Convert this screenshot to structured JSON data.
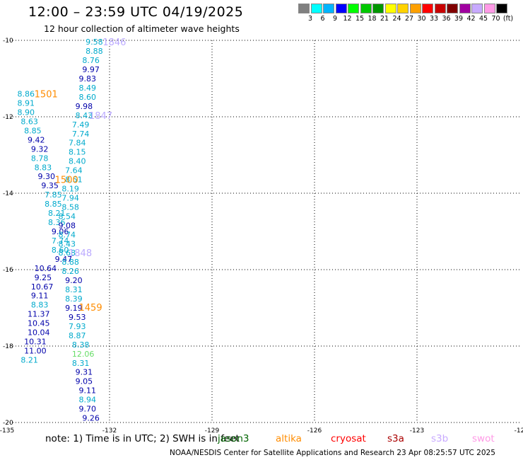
{
  "header": {
    "title": "12:00 – 23:59 UTC 04/19/2025",
    "subtitle": "12 hour collection of altimeter wave heights"
  },
  "legend": {
    "colors": [
      "#808080",
      "#00ffff",
      "#00b4ff",
      "#0000ff",
      "#00ff00",
      "#00c800",
      "#009600",
      "#ffff00",
      "#ffd200",
      "#ffa000",
      "#ff0000",
      "#c80000",
      "#800000",
      "#a000a0",
      "#c8aaff",
      "#ff9ae6",
      "#000000"
    ],
    "labels": [
      "3",
      "6",
      "9",
      "12",
      "15",
      "18",
      "21",
      "24",
      "27",
      "30",
      "33",
      "36",
      "39",
      "42",
      "45",
      "70",
      "(ft)"
    ]
  },
  "map": {
    "x_ticks": [
      "-135",
      "-132",
      "-129",
      "-126",
      "-123",
      "-12"
    ],
    "y_ticks": [
      "-10",
      "-12",
      "-14",
      "-16",
      "-18",
      "-20"
    ]
  },
  "observations": [
    {
      "lon": -134.7,
      "lat": -11.4,
      "v": "8.86",
      "c": "#00aacc"
    },
    {
      "lon": -134.7,
      "lat": -11.64,
      "v": "8.91",
      "c": "#00aacc"
    },
    {
      "lon": -134.7,
      "lat": -11.88,
      "v": "8.90",
      "c": "#00aacc"
    },
    {
      "lon": -134.6,
      "lat": -12.12,
      "v": "8.63",
      "c": "#00aacc"
    },
    {
      "lon": -134.5,
      "lat": -12.36,
      "v": "8.85",
      "c": "#00aacc"
    },
    {
      "lon": -134.4,
      "lat": -12.6,
      "v": "9.42",
      "c": "#0000aa"
    },
    {
      "lon": -134.3,
      "lat": -12.84,
      "v": "9.32",
      "c": "#0000aa"
    },
    {
      "lon": -134.3,
      "lat": -13.08,
      "v": "8.78",
      "c": "#00aacc"
    },
    {
      "lon": -134.2,
      "lat": -13.32,
      "v": "8.83",
      "c": "#00aacc"
    },
    {
      "lon": -134.1,
      "lat": -13.56,
      "v": "9.30",
      "c": "#0000aa"
    },
    {
      "lon": -134.0,
      "lat": -13.8,
      "v": "9.35",
      "c": "#0000aa"
    },
    {
      "lon": -133.9,
      "lat": -14.04,
      "v": "7.85",
      "c": "#00aacc"
    },
    {
      "lon": -133.9,
      "lat": -14.28,
      "v": "8.85",
      "c": "#00aacc"
    },
    {
      "lon": -133.8,
      "lat": -14.52,
      "v": "8.21",
      "c": "#00aacc"
    },
    {
      "lon": -133.8,
      "lat": -14.76,
      "v": "8.36",
      "c": "#00aacc"
    },
    {
      "lon": -133.7,
      "lat": -15.0,
      "v": "9.06",
      "c": "#0000aa"
    },
    {
      "lon": -133.7,
      "lat": -15.24,
      "v": "7.74",
      "c": "#00aacc"
    },
    {
      "lon": -133.7,
      "lat": -15.48,
      "v": "8.60",
      "c": "#00aacc"
    },
    {
      "lon": -133.6,
      "lat": -15.72,
      "v": "9.47",
      "c": "#0000aa"
    },
    {
      "lon": -134.2,
      "lat": -15.96,
      "v": "10.64",
      "c": "#0000aa"
    },
    {
      "lon": -134.2,
      "lat": -16.2,
      "v": "9.25",
      "c": "#0000aa"
    },
    {
      "lon": -134.3,
      "lat": -16.44,
      "v": "10.67",
      "c": "#0000aa"
    },
    {
      "lon": -134.3,
      "lat": -16.68,
      "v": "9.11",
      "c": "#0000aa"
    },
    {
      "lon": -134.3,
      "lat": -16.92,
      "v": "8.83",
      "c": "#00aacc"
    },
    {
      "lon": -134.4,
      "lat": -17.16,
      "v": "11.37",
      "c": "#0000aa"
    },
    {
      "lon": -134.4,
      "lat": -17.4,
      "v": "10.45",
      "c": "#0000aa"
    },
    {
      "lon": -134.4,
      "lat": -17.64,
      "v": "10.04",
      "c": "#0000aa"
    },
    {
      "lon": -134.5,
      "lat": -17.88,
      "v": "10.31",
      "c": "#0000aa"
    },
    {
      "lon": -134.5,
      "lat": -18.12,
      "v": "11.00",
      "c": "#0000aa"
    },
    {
      "lon": -134.6,
      "lat": -18.36,
      "v": "8.21",
      "c": "#00aacc"
    },
    {
      "lon": -132.7,
      "lat": -10.04,
      "v": "9.58",
      "c": "#00aacc"
    },
    {
      "lon": -132.7,
      "lat": -10.28,
      "v": "8.88",
      "c": "#00aacc"
    },
    {
      "lon": -132.8,
      "lat": -10.52,
      "v": "8.76",
      "c": "#00aacc"
    },
    {
      "lon": -132.8,
      "lat": -10.76,
      "v": "9.97",
      "c": "#0000aa"
    },
    {
      "lon": -132.9,
      "lat": -11.0,
      "v": "9.83",
      "c": "#0000aa"
    },
    {
      "lon": -132.9,
      "lat": -11.24,
      "v": "8.49",
      "c": "#00aacc"
    },
    {
      "lon": -132.9,
      "lat": -11.48,
      "v": "8.60",
      "c": "#00aacc"
    },
    {
      "lon": -133.0,
      "lat": -11.72,
      "v": "9.98",
      "c": "#0000aa"
    },
    {
      "lon": -133.0,
      "lat": -11.96,
      "v": "8.43",
      "c": "#00aacc"
    },
    {
      "lon": -133.1,
      "lat": -12.2,
      "v": "7.49",
      "c": "#00aacc"
    },
    {
      "lon": -133.1,
      "lat": -12.44,
      "v": "7.74",
      "c": "#00aacc"
    },
    {
      "lon": -133.2,
      "lat": -12.68,
      "v": "7.84",
      "c": "#00aacc"
    },
    {
      "lon": -133.2,
      "lat": -12.92,
      "v": "8.15",
      "c": "#00aacc"
    },
    {
      "lon": -133.2,
      "lat": -13.16,
      "v": "8.40",
      "c": "#00aacc"
    },
    {
      "lon": -133.3,
      "lat": -13.4,
      "v": "7.64",
      "c": "#00aacc"
    },
    {
      "lon": -133.3,
      "lat": -13.64,
      "v": "8.51",
      "c": "#00aacc"
    },
    {
      "lon": -133.4,
      "lat": -13.88,
      "v": "8.19",
      "c": "#00aacc"
    },
    {
      "lon": -133.4,
      "lat": -14.12,
      "v": "7.94",
      "c": "#00aacc"
    },
    {
      "lon": -133.4,
      "lat": -14.36,
      "v": "8.58",
      "c": "#00aacc"
    },
    {
      "lon": -133.5,
      "lat": -14.6,
      "v": "8.54",
      "c": "#00aacc"
    },
    {
      "lon": -133.5,
      "lat": -14.84,
      "v": "9.08",
      "c": "#0000aa"
    },
    {
      "lon": -133.5,
      "lat": -15.08,
      "v": "8.74",
      "c": "#00aacc"
    },
    {
      "lon": -133.5,
      "lat": -15.32,
      "v": "8.43",
      "c": "#00aacc"
    },
    {
      "lon": -133.5,
      "lat": -15.56,
      "v": "8.68",
      "c": "#00aacc"
    },
    {
      "lon": -133.4,
      "lat": -15.8,
      "v": "8.88",
      "c": "#00aacc"
    },
    {
      "lon": -133.4,
      "lat": -16.04,
      "v": "8.26",
      "c": "#00aacc"
    },
    {
      "lon": -133.3,
      "lat": -16.28,
      "v": "9.20",
      "c": "#0000aa"
    },
    {
      "lon": -133.3,
      "lat": -16.52,
      "v": "8.31",
      "c": "#00aacc"
    },
    {
      "lon": -133.3,
      "lat": -16.76,
      "v": "8.39",
      "c": "#00aacc"
    },
    {
      "lon": -133.3,
      "lat": -17.0,
      "v": "9.19",
      "c": "#0000aa"
    },
    {
      "lon": -133.2,
      "lat": -17.24,
      "v": "9.53",
      "c": "#0000aa"
    },
    {
      "lon": -133.2,
      "lat": -17.48,
      "v": "7.93",
      "c": "#00aacc"
    },
    {
      "lon": -133.2,
      "lat": -17.72,
      "v": "8.87",
      "c": "#00aacc"
    },
    {
      "lon": -133.1,
      "lat": -17.96,
      "v": "8.38",
      "c": "#00aacc"
    },
    {
      "lon": -133.1,
      "lat": -18.2,
      "v": "12.06",
      "c": "#66dd66"
    },
    {
      "lon": -133.1,
      "lat": -18.44,
      "v": "8.31",
      "c": "#00aacc"
    },
    {
      "lon": -133.0,
      "lat": -18.68,
      "v": "9.31",
      "c": "#0000aa"
    },
    {
      "lon": -133.0,
      "lat": -18.92,
      "v": "9.05",
      "c": "#0000aa"
    },
    {
      "lon": -132.9,
      "lat": -19.16,
      "v": "9.11",
      "c": "#0000aa"
    },
    {
      "lon": -132.9,
      "lat": -19.4,
      "v": "8.94",
      "c": "#00aacc"
    },
    {
      "lon": -132.9,
      "lat": -19.64,
      "v": "9.70",
      "c": "#0000aa"
    },
    {
      "lon": -132.8,
      "lat": -19.88,
      "v": "9.26",
      "c": "#0000aa"
    }
  ],
  "pass_times": [
    {
      "lon": -132.2,
      "lat": -10.04,
      "t": "1846",
      "c": "#bbaaff"
    },
    {
      "lon": -134.2,
      "lat": -11.4,
      "t": "1501",
      "c": "#ff8c00"
    },
    {
      "lon": -132.6,
      "lat": -11.96,
      "t": "1847",
      "c": "#bbaaff"
    },
    {
      "lon": -133.6,
      "lat": -13.64,
      "t": "1500",
      "c": "#ff8c00"
    },
    {
      "lon": -133.2,
      "lat": -15.56,
      "t": "1848",
      "c": "#bbaaff"
    },
    {
      "lon": -132.9,
      "lat": -16.98,
      "t": "1459",
      "c": "#ff8c00"
    }
  ],
  "footer": {
    "note": "note:  1) Time is in UTC; 2) SWH is in feet",
    "satellites": [
      {
        "name": "jason3",
        "color": "#006400"
      },
      {
        "name": "altika",
        "color": "#ff8c00"
      },
      {
        "name": "cryosat",
        "color": "#ff0000"
      },
      {
        "name": "s3a",
        "color": "#aa0000"
      },
      {
        "name": "s3b",
        "color": "#c8aaff"
      },
      {
        "name": "swot",
        "color": "#ff9ae6"
      }
    ],
    "credit": "NOAA/NESDIS Center for Satellite Applications and Research     23 Apr 08:25:57 UTC 2025"
  }
}
